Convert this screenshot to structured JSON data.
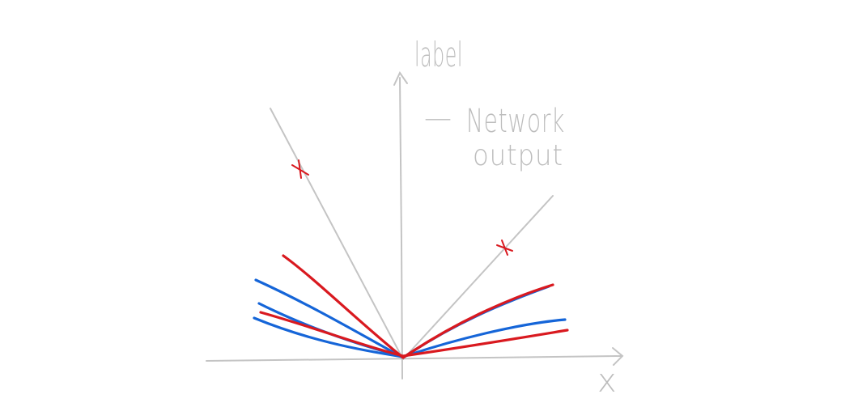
{
  "axes": {
    "x_label": "x",
    "y_label": "label"
  },
  "legend": {
    "dash": "—",
    "line1": "Network",
    "line2": "output"
  },
  "colors": {
    "axis": "#c4c4c4",
    "target": "#c4c4c4",
    "network_red": "#d9191f",
    "network_blue": "#1565d8",
    "marker": "#d9191f",
    "text": "#bdbdbd"
  }
}
